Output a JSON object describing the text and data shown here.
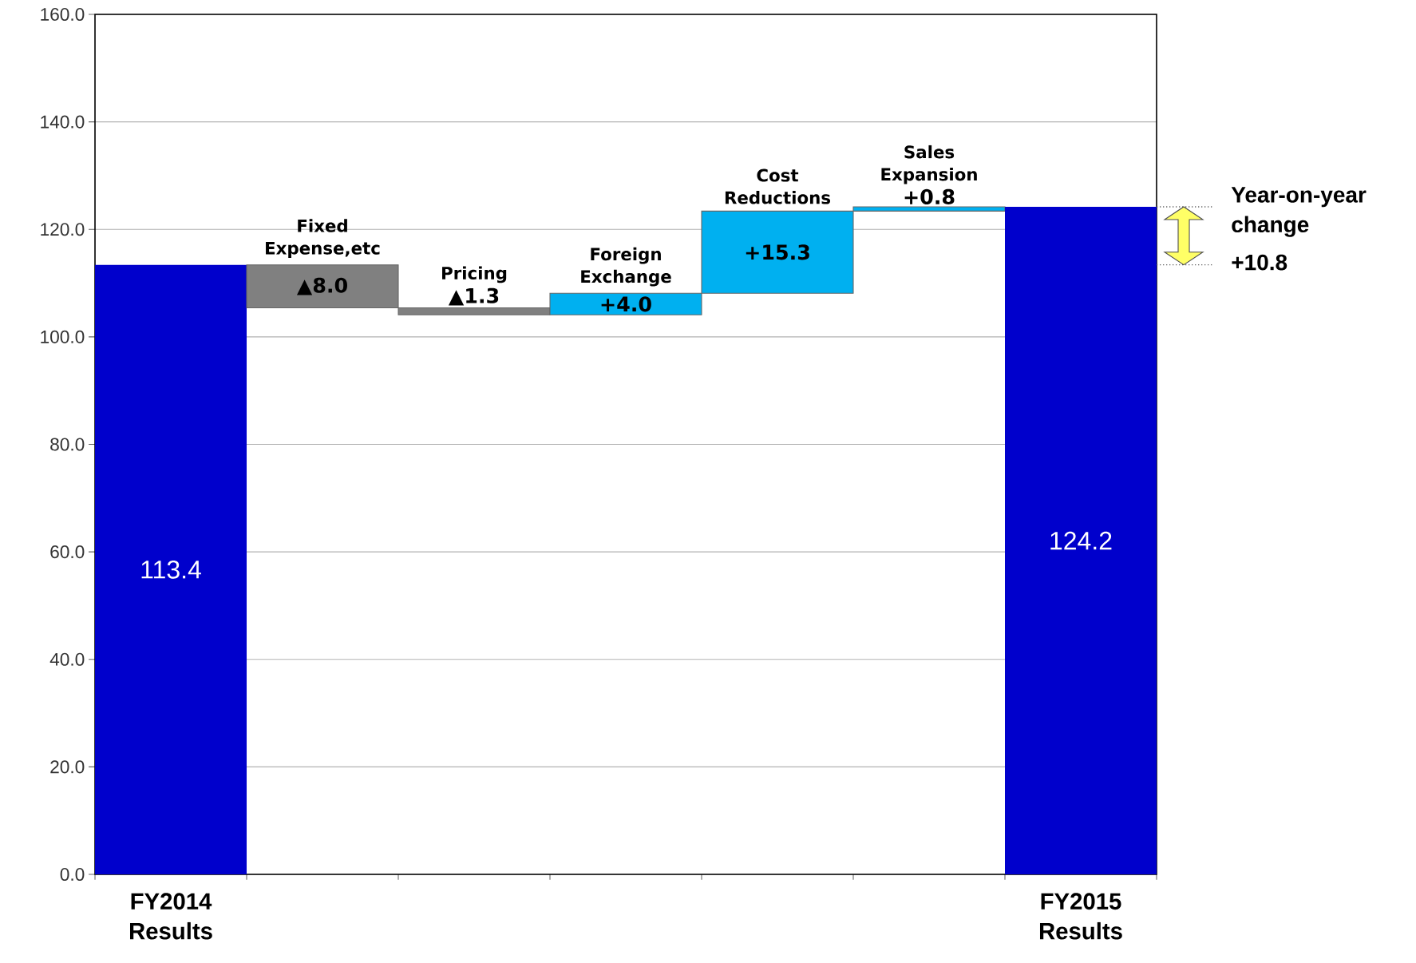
{
  "chart_data": {
    "type": "bar",
    "categories": [
      "FY2014 Results",
      "Fixed Expense,etc",
      "Pricing",
      "Foreign Exchange",
      "Cost Reductions",
      "Sales Expansion",
      "FY2015 Results"
    ],
    "values": [
      113.4,
      -8.0,
      -1.3,
      4.0,
      15.3,
      0.8,
      124.2
    ],
    "base": [
      0,
      113.4,
      105.4,
      104.1,
      108.1,
      123.4,
      0
    ],
    "colors": [
      "#0000cc",
      "#808080",
      "#808080",
      "#00b0f0",
      "#00b0f0",
      "#00b0f0",
      "#0000cc"
    ],
    "value_labels": [
      "113.4",
      "▲8.0",
      "▲1.3",
      "+4.0",
      "+15.3",
      "+0.8",
      "124.2"
    ],
    "ylim": [
      0,
      160
    ],
    "yticks": [
      {
        "value": 0,
        "label": "0.0"
      },
      {
        "value": 20,
        "label": "20.0"
      },
      {
        "value": 40,
        "label": "40.0"
      },
      {
        "value": 60,
        "label": "60.0"
      },
      {
        "value": 80,
        "label": "80.0"
      },
      {
        "value": 100,
        "label": "100.0"
      },
      {
        "value": 120,
        "label": "120.0"
      },
      {
        "value": 140,
        "label": "140.0"
      },
      {
        "value": 160,
        "label": "160.0"
      }
    ],
    "grid": "y",
    "annotations": [
      "Year-on-year change",
      "+10.8"
    ]
  }
}
